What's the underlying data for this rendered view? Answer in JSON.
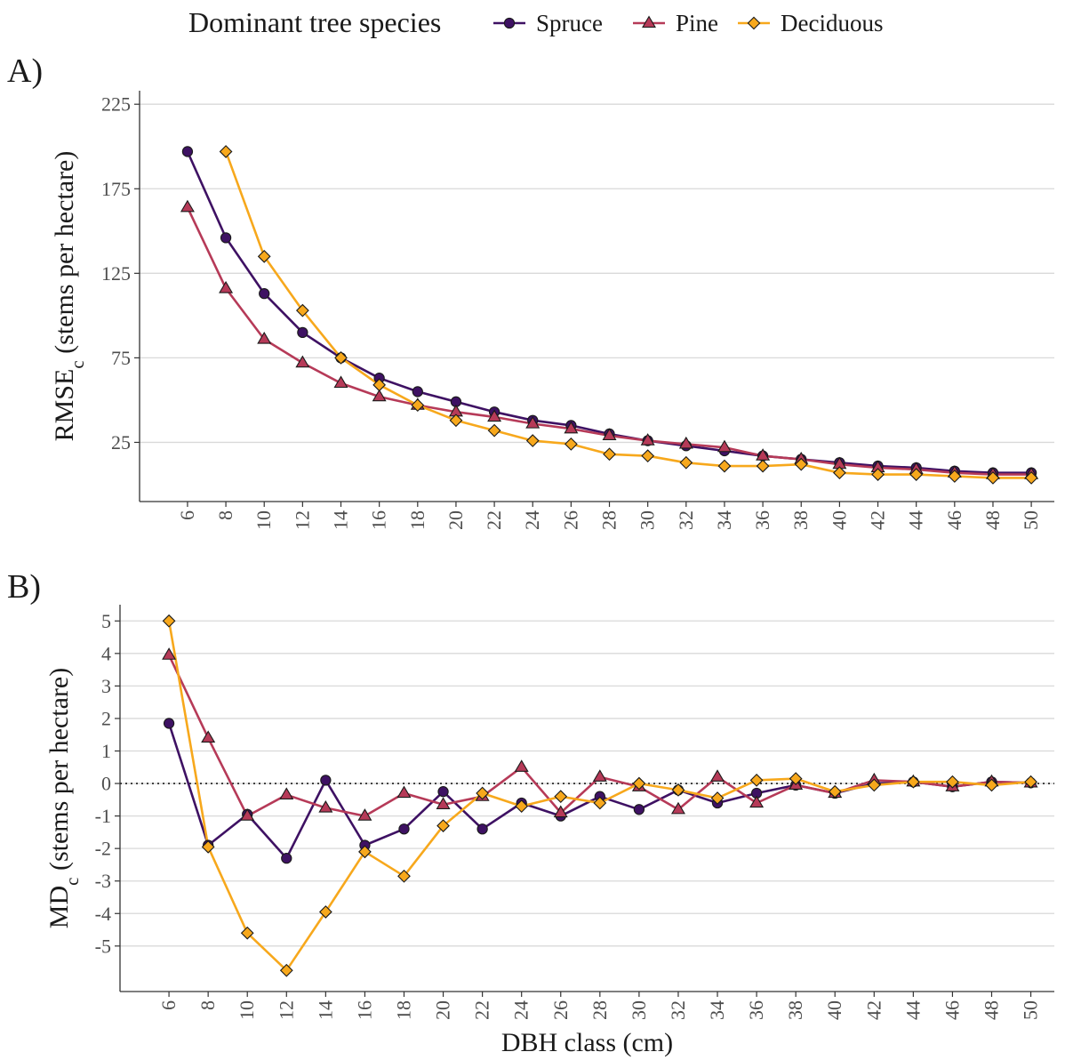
{
  "legend": {
    "title": "Dominant tree species",
    "position": "top"
  },
  "series_style": {
    "Spruce": {
      "color": "#3e1163",
      "marker": "circle"
    },
    "Pine": {
      "color": "#b63a58",
      "marker": "triangle"
    },
    "Deciduous": {
      "color": "#f7a81c",
      "marker": "diamond"
    }
  },
  "chart_data": [
    {
      "type": "line",
      "panel": "A)",
      "title": "",
      "xlabel": "",
      "ylabel": "RMSE",
      "ylabel_sub": "c",
      "ylabel_rest": " (stems per hectare)",
      "x": [
        6,
        8,
        10,
        12,
        14,
        16,
        18,
        20,
        22,
        24,
        26,
        28,
        30,
        32,
        34,
        36,
        38,
        40,
        42,
        44,
        46,
        48,
        50
      ],
      "xticks": [
        "6",
        "8",
        "10",
        "12",
        "14",
        "16",
        "18",
        "20",
        "22",
        "24",
        "26",
        "28",
        "30",
        "32",
        "34",
        "36",
        "38",
        "40",
        "42",
        "44",
        "46",
        "48",
        "50"
      ],
      "yticks": [
        "25",
        "75",
        "125",
        "175",
        "225"
      ],
      "ylim": [
        -10,
        233
      ],
      "xlim": [
        3.5,
        51.2
      ],
      "grid": true,
      "series": [
        {
          "name": "Spruce",
          "values": [
            197,
            146,
            113,
            90,
            75,
            63,
            55,
            49,
            43,
            38,
            35,
            30,
            26,
            23,
            20,
            17,
            15,
            13,
            11,
            10,
            8,
            7,
            7
          ]
        },
        {
          "name": "Pine",
          "values": [
            164,
            116,
            86,
            72,
            60,
            52,
            47,
            43,
            40,
            36,
            33,
            29,
            26,
            24,
            22,
            17,
            15,
            12,
            10,
            9,
            7,
            6,
            6
          ]
        },
        {
          "name": "Deciduous",
          "values": [
            null,
            197,
            135,
            103,
            75,
            59,
            47,
            38,
            32,
            26,
            24,
            18,
            17,
            13,
            11,
            11,
            12,
            7,
            6,
            6,
            5,
            4,
            4
          ]
        }
      ]
    },
    {
      "type": "line",
      "panel": "B)",
      "title": "",
      "xlabel": "DBH class (cm)",
      "ylabel": "MD",
      "ylabel_sub": "c",
      "ylabel_rest": " (stems per hectare)",
      "x": [
        6,
        8,
        10,
        12,
        14,
        16,
        18,
        20,
        22,
        24,
        26,
        28,
        30,
        32,
        34,
        36,
        38,
        40,
        42,
        44,
        46,
        48,
        50
      ],
      "xticks": [
        "6",
        "8",
        "10",
        "12",
        "14",
        "16",
        "18",
        "20",
        "22",
        "24",
        "26",
        "28",
        "30",
        "32",
        "34",
        "36",
        "38",
        "40",
        "42",
        "44",
        "46",
        "48",
        "50"
      ],
      "yticks": [
        "-5",
        "-4",
        "-3",
        "-2",
        "-1",
        "0",
        "1",
        "2",
        "3",
        "4",
        "5"
      ],
      "ylim": [
        -6.4,
        5.5
      ],
      "xlim": [
        3.5,
        51.2
      ],
      "grid": true,
      "reference_line": {
        "y": 0,
        "style": "dotted"
      },
      "series": [
        {
          "name": "Spruce",
          "values": [
            1.85,
            -1.9,
            -0.95,
            -2.3,
            0.1,
            -1.9,
            -1.4,
            -0.25,
            -1.4,
            -0.6,
            -1.0,
            -0.4,
            -0.8,
            -0.2,
            -0.6,
            -0.3,
            -0.05,
            -0.3,
            0.0,
            0.05,
            -0.1,
            0.05,
            0.02
          ]
        },
        {
          "name": "Pine",
          "values": [
            3.95,
            1.4,
            -1.0,
            -0.35,
            -0.75,
            -1.0,
            -0.3,
            -0.65,
            -0.4,
            0.5,
            -0.9,
            0.2,
            -0.1,
            -0.8,
            0.2,
            -0.6,
            -0.05,
            -0.3,
            0.1,
            0.05,
            -0.1,
            0.05,
            0.02
          ]
        },
        {
          "name": "Deciduous",
          "values": [
            5.0,
            -1.95,
            -4.6,
            -5.75,
            -3.95,
            -2.1,
            -2.85,
            -1.3,
            -0.3,
            -0.7,
            -0.4,
            -0.6,
            0.0,
            -0.2,
            -0.45,
            0.1,
            0.15,
            -0.25,
            -0.05,
            0.05,
            0.05,
            -0.05,
            0.05
          ]
        }
      ]
    }
  ]
}
